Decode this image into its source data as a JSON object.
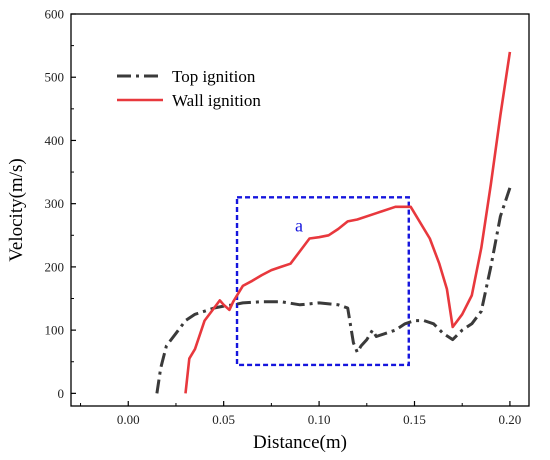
{
  "chart_data": {
    "type": "line",
    "title": "",
    "xlabel": "Distance(m)",
    "ylabel": "Velocity(m/s)",
    "xlim": [
      -0.03,
      0.21
    ],
    "ylim": [
      -20,
      600
    ],
    "xticks": [
      0.0,
      0.05,
      0.1,
      0.15,
      0.2
    ],
    "xtick_labels": [
      "0.00",
      "0.05",
      "0.10",
      "0.15",
      "0.20"
    ],
    "yticks": [
      0,
      100,
      200,
      300,
      400,
      500,
      600
    ],
    "ytick_labels": [
      "0",
      "100",
      "200",
      "300",
      "400",
      "500",
      "600"
    ],
    "grid": false,
    "legend_position": "top-left",
    "series": [
      {
        "name": "Top ignition",
        "style": "dash-dot",
        "color": "#3a3a3a",
        "x": [
          0.015,
          0.017,
          0.02,
          0.025,
          0.03,
          0.035,
          0.04,
          0.045,
          0.05,
          0.055,
          0.06,
          0.07,
          0.08,
          0.09,
          0.1,
          0.11,
          0.115,
          0.118,
          0.12,
          0.122,
          0.125,
          0.128,
          0.13,
          0.14,
          0.145,
          0.15,
          0.155,
          0.16,
          0.165,
          0.17,
          0.175,
          0.18,
          0.185,
          0.19,
          0.195,
          0.2
        ],
        "y": [
          0,
          40,
          75,
          95,
          115,
          125,
          130,
          135,
          138,
          140,
          143,
          145,
          145,
          140,
          143,
          140,
          135,
          80,
          65,
          75,
          85,
          100,
          90,
          100,
          110,
          115,
          115,
          110,
          95,
          85,
          100,
          110,
          130,
          200,
          280,
          325
        ]
      },
      {
        "name": "Wall ignition",
        "style": "solid",
        "color": "#e8383d",
        "x": [
          0.03,
          0.032,
          0.035,
          0.04,
          0.045,
          0.048,
          0.05,
          0.053,
          0.055,
          0.06,
          0.065,
          0.07,
          0.075,
          0.08,
          0.085,
          0.09,
          0.095,
          0.1,
          0.105,
          0.11,
          0.115,
          0.12,
          0.13,
          0.14,
          0.148,
          0.158,
          0.163,
          0.167,
          0.17,
          0.175,
          0.18,
          0.185,
          0.19,
          0.195,
          0.2
        ],
        "y": [
          0,
          55,
          70,
          115,
          135,
          147,
          140,
          132,
          145,
          170,
          178,
          187,
          195,
          200,
          205,
          225,
          245,
          247,
          250,
          260,
          272,
          275,
          285,
          295,
          295,
          245,
          205,
          165,
          105,
          125,
          155,
          230,
          330,
          440,
          540
        ]
      }
    ],
    "annotations": [
      {
        "type": "box",
        "label": "a",
        "color": "#1515dd",
        "x": [
          0.057,
          0.147
        ],
        "y": [
          45,
          310
        ]
      }
    ]
  }
}
